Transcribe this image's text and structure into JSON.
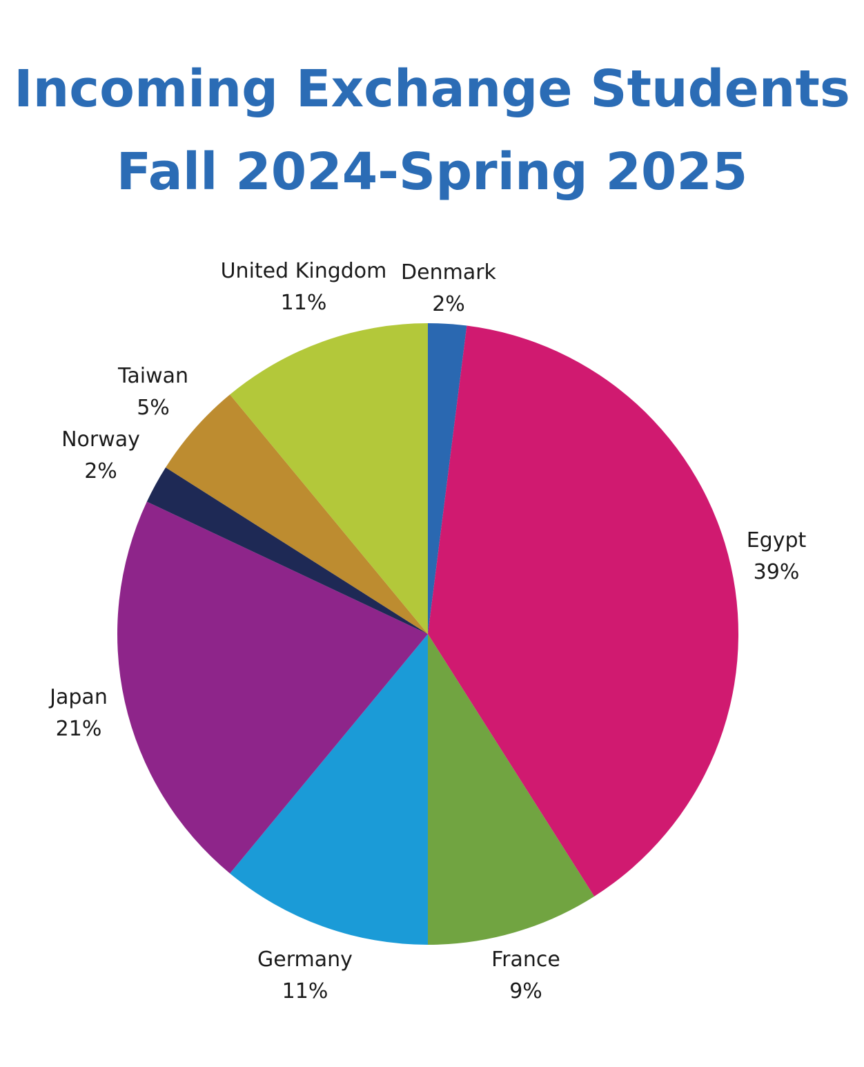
{
  "title_line1": "Incoming Exchange Students",
  "title_line2": "Fall 2024-Spring 2025",
  "chart_data": {
    "type": "pie",
    "title": "Incoming Exchange Students Fall 2024-Spring 2025",
    "start": "12 o'clock",
    "direction": "clockwise",
    "legend": "none",
    "slices": [
      {
        "label": "Denmark",
        "value": 2,
        "display": "2%",
        "color": "#2a68b1"
      },
      {
        "label": "Egypt",
        "value": 39,
        "display": "39%",
        "color": "#d01a70"
      },
      {
        "label": "France",
        "value": 9,
        "display": "9%",
        "color": "#71a441"
      },
      {
        "label": "Germany",
        "value": 11,
        "display": "11%",
        "color": "#1b9bd7"
      },
      {
        "label": "Japan",
        "value": 21,
        "display": "21%",
        "color": "#8e258a"
      },
      {
        "label": "Norway",
        "value": 2,
        "display": "2%",
        "color": "#1e2955"
      },
      {
        "label": "Taiwan",
        "value": 5,
        "display": "5%",
        "color": "#bd8c30"
      },
      {
        "label": "United Kingdom",
        "value": 11,
        "display": "11%",
        "color": "#b3c83a"
      }
    ]
  }
}
